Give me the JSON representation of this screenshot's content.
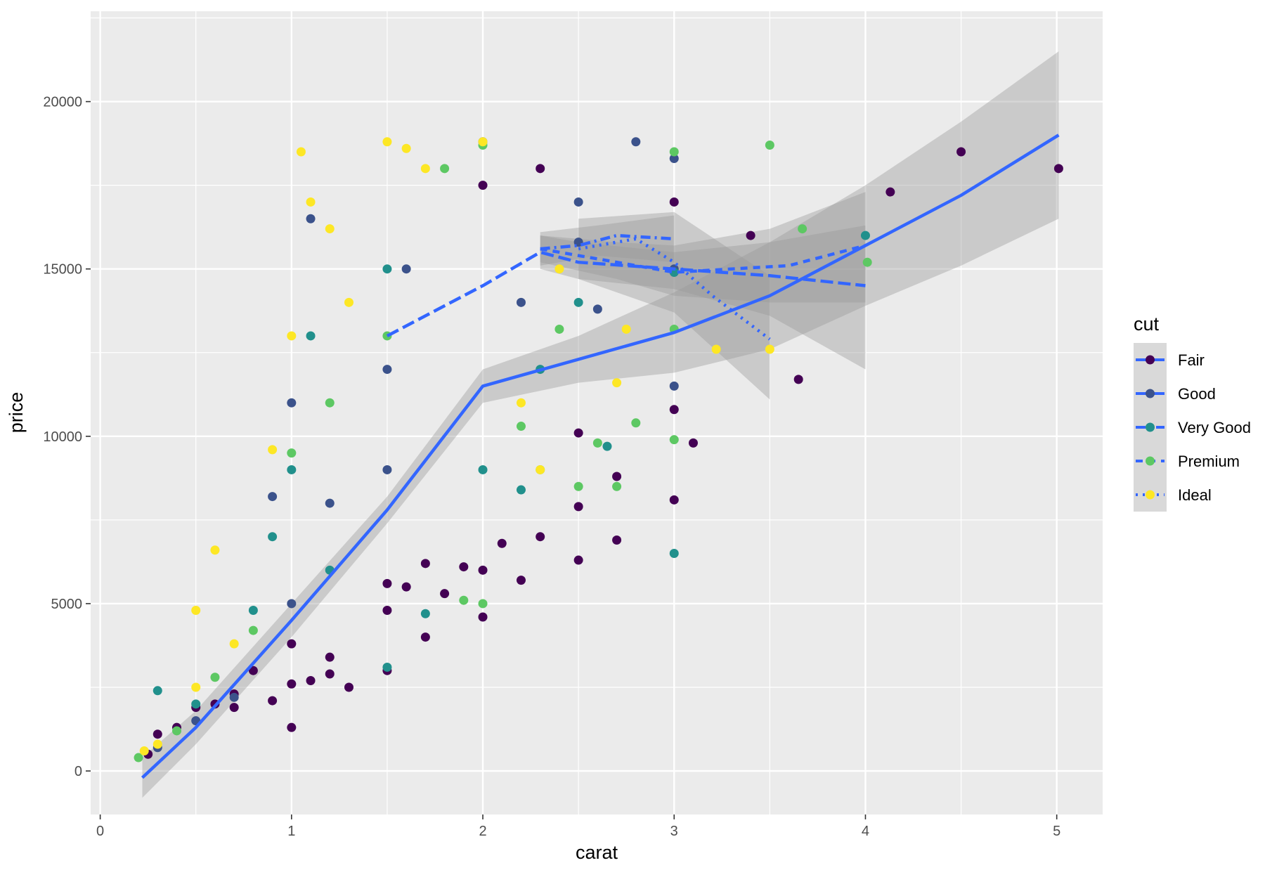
{
  "chart_data": {
    "type": "scatter",
    "title": "",
    "xlabel": "carat",
    "ylabel": "price",
    "xlim": [
      -0.05,
      5.24
    ],
    "ylim": [
      -1300,
      22700
    ],
    "x_ticks": [
      0,
      1,
      2,
      3,
      4,
      5
    ],
    "y_ticks": [
      0,
      5000,
      10000,
      15000,
      20000
    ],
    "x_tick_labels": [
      "0",
      "1",
      "2",
      "3",
      "4",
      "5"
    ],
    "y_tick_labels": [
      "0",
      "5000",
      "10000",
      "15000",
      "20000"
    ],
    "grid": true,
    "legend": {
      "title": "cut",
      "position": "right",
      "entries": [
        {
          "label": "Fair",
          "point_color": "#440154",
          "line_type": "solid"
        },
        {
          "label": "Good",
          "point_color": "#3B528B",
          "line_type": "longdash"
        },
        {
          "label": "Very Good",
          "point_color": "#21908C",
          "line_type": "dashdot"
        },
        {
          "label": "Premium",
          "point_color": "#5DC863",
          "line_type": "dashed"
        },
        {
          "label": "Ideal",
          "point_color": "#FDE725",
          "line_type": "dotted"
        }
      ]
    },
    "smooth_color": "#3366FF",
    "series": [
      {
        "name": "Fair",
        "color": "#440154",
        "points": [
          [
            0.25,
            500
          ],
          [
            0.3,
            1100
          ],
          [
            0.4,
            1300
          ],
          [
            0.5,
            1900
          ],
          [
            0.6,
            2000
          ],
          [
            0.7,
            2300
          ],
          [
            0.8,
            3000
          ],
          [
            0.9,
            2100
          ],
          [
            1.0,
            3800
          ],
          [
            1.0,
            1300
          ],
          [
            1.1,
            2700
          ],
          [
            1.2,
            3400
          ],
          [
            1.3,
            2500
          ],
          [
            1.5,
            3000
          ],
          [
            1.5,
            4800
          ],
          [
            1.6,
            5500
          ],
          [
            1.7,
            6200
          ],
          [
            1.8,
            5300
          ],
          [
            1.9,
            6100
          ],
          [
            2.0,
            6000
          ],
          [
            2.1,
            6800
          ],
          [
            2.2,
            5700
          ],
          [
            2.3,
            7000
          ],
          [
            2.5,
            6300
          ],
          [
            2.5,
            7900
          ],
          [
            2.7,
            6900
          ],
          [
            2.7,
            8800
          ],
          [
            3.0,
            8100
          ],
          [
            3.0,
            10800
          ],
          [
            3.0,
            17000
          ],
          [
            3.1,
            9800
          ],
          [
            3.4,
            16000
          ],
          [
            3.65,
            11700
          ],
          [
            4.13,
            17300
          ],
          [
            4.5,
            18500
          ],
          [
            5.01,
            18000
          ],
          [
            2.5,
            10100
          ],
          [
            2.0,
            4600
          ],
          [
            1.2,
            2900
          ],
          [
            1.5,
            5600
          ],
          [
            2.0,
            17500
          ],
          [
            2.3,
            18000
          ],
          [
            0.7,
            1900
          ],
          [
            1.0,
            2600
          ],
          [
            1.7,
            4000
          ]
        ],
        "smooth": [
          [
            0.22,
            -200
          ],
          [
            0.5,
            1300
          ],
          [
            1.0,
            4500
          ],
          [
            1.5,
            7800
          ],
          [
            2.0,
            11500
          ],
          [
            2.5,
            12300
          ],
          [
            3.0,
            13100
          ],
          [
            3.5,
            14200
          ],
          [
            4.0,
            15700
          ],
          [
            4.5,
            17200
          ],
          [
            5.01,
            19000
          ]
        ],
        "band_upper": [
          [
            0.22,
            400
          ],
          [
            0.5,
            1800
          ],
          [
            1.0,
            5000
          ],
          [
            1.5,
            8200
          ],
          [
            2.0,
            12000
          ],
          [
            2.5,
            13000
          ],
          [
            3.0,
            14300
          ],
          [
            3.5,
            15800
          ],
          [
            4.0,
            17500
          ],
          [
            4.5,
            19400
          ],
          [
            5.01,
            21500
          ]
        ],
        "band_lower": [
          [
            0.22,
            -800
          ],
          [
            0.5,
            800
          ],
          [
            1.0,
            4000
          ],
          [
            1.5,
            7400
          ],
          [
            2.0,
            11000
          ],
          [
            2.5,
            11600
          ],
          [
            3.0,
            11900
          ],
          [
            3.5,
            12600
          ],
          [
            4.0,
            13900
          ],
          [
            4.5,
            15100
          ],
          [
            5.01,
            16500
          ]
        ]
      },
      {
        "name": "Good",
        "color": "#3B528B",
        "points": [
          [
            0.3,
            700
          ],
          [
            0.5,
            1500
          ],
          [
            0.7,
            2200
          ],
          [
            0.9,
            8200
          ],
          [
            1.0,
            5000
          ],
          [
            1.1,
            16500
          ],
          [
            1.2,
            8000
          ],
          [
            1.5,
            12000
          ],
          [
            1.6,
            15000
          ],
          [
            2.0,
            18800
          ],
          [
            2.2,
            14000
          ],
          [
            2.5,
            15800
          ],
          [
            2.6,
            13800
          ],
          [
            2.8,
            18800
          ],
          [
            3.0,
            15000
          ],
          [
            3.0,
            18300
          ],
          [
            3.0,
            11500
          ],
          [
            2.5,
            17000
          ],
          [
            1.5,
            9000
          ],
          [
            1.0,
            11000
          ]
        ],
        "smooth": [
          [
            1.5,
            13000
          ],
          [
            2.0,
            14500
          ],
          [
            2.3,
            15500
          ],
          [
            2.5,
            15200
          ],
          [
            3.0,
            15000
          ],
          [
            3.5,
            14800
          ],
          [
            4.0,
            14500
          ]
        ],
        "band_upper": [
          [
            2.3,
            16000
          ],
          [
            2.5,
            15800
          ],
          [
            3.0,
            15500
          ],
          [
            3.5,
            15800
          ],
          [
            4.0,
            16300
          ]
        ],
        "band_lower": [
          [
            2.3,
            15000
          ],
          [
            2.5,
            14700
          ],
          [
            3.0,
            14400
          ],
          [
            3.5,
            13600
          ],
          [
            4.0,
            12000
          ]
        ]
      },
      {
        "name": "Very Good",
        "color": "#21908C",
        "points": [
          [
            0.3,
            2400
          ],
          [
            0.5,
            2000
          ],
          [
            0.8,
            4800
          ],
          [
            0.9,
            7000
          ],
          [
            1.0,
            9000
          ],
          [
            1.1,
            13000
          ],
          [
            1.5,
            15000
          ],
          [
            1.5,
            3100
          ],
          [
            1.7,
            4700
          ],
          [
            2.0,
            9000
          ],
          [
            2.2,
            8400
          ],
          [
            2.5,
            14000
          ],
          [
            2.65,
            9700
          ],
          [
            3.0,
            6500
          ],
          [
            3.0,
            14900
          ],
          [
            4.0,
            16000
          ],
          [
            2.3,
            12000
          ],
          [
            1.2,
            6000
          ]
        ],
        "smooth": [
          [
            2.3,
            15600
          ],
          [
            2.5,
            15700
          ],
          [
            2.7,
            16000
          ],
          [
            3.0,
            15900
          ]
        ],
        "band_upper": [
          [
            2.3,
            16100
          ],
          [
            2.6,
            16300
          ],
          [
            3.0,
            16600
          ]
        ],
        "band_lower": [
          [
            2.3,
            15100
          ],
          [
            2.6,
            15400
          ],
          [
            3.0,
            15200
          ]
        ]
      },
      {
        "name": "Premium",
        "color": "#5DC863",
        "points": [
          [
            0.2,
            400
          ],
          [
            0.4,
            1200
          ],
          [
            0.6,
            2800
          ],
          [
            0.8,
            4200
          ],
          [
            1.0,
            9500
          ],
          [
            1.2,
            11000
          ],
          [
            1.5,
            13000
          ],
          [
            1.8,
            18000
          ],
          [
            2.0,
            18700
          ],
          [
            2.2,
            10300
          ],
          [
            2.4,
            13200
          ],
          [
            2.5,
            8500
          ],
          [
            2.6,
            9800
          ],
          [
            2.8,
            10400
          ],
          [
            3.0,
            18500
          ],
          [
            3.0,
            13200
          ],
          [
            3.0,
            9900
          ],
          [
            3.5,
            18700
          ],
          [
            3.67,
            16200
          ],
          [
            4.01,
            15200
          ],
          [
            2.0,
            5000
          ],
          [
            1.9,
            5100
          ],
          [
            2.3,
            9000
          ],
          [
            2.7,
            8500
          ]
        ],
        "smooth": [
          [
            2.3,
            15600
          ],
          [
            2.5,
            15400
          ],
          [
            3.0,
            14900
          ],
          [
            3.3,
            15000
          ],
          [
            3.6,
            15100
          ],
          [
            4.0,
            15700
          ]
        ],
        "band_upper": [
          [
            2.3,
            16000
          ],
          [
            2.7,
            15800
          ],
          [
            3.0,
            15700
          ],
          [
            3.5,
            16200
          ],
          [
            4.0,
            17300
          ]
        ],
        "band_lower": [
          [
            2.3,
            15200
          ],
          [
            2.7,
            14700
          ],
          [
            3.0,
            14200
          ],
          [
            3.5,
            14000
          ],
          [
            4.0,
            14000
          ]
        ]
      },
      {
        "name": "Ideal",
        "color": "#FDE725",
        "points": [
          [
            0.23,
            600
          ],
          [
            0.3,
            800
          ],
          [
            0.5,
            2500
          ],
          [
            0.6,
            6600
          ],
          [
            0.7,
            3800
          ],
          [
            0.9,
            9600
          ],
          [
            1.0,
            13000
          ],
          [
            1.1,
            17000
          ],
          [
            1.2,
            16200
          ],
          [
            1.3,
            14000
          ],
          [
            1.5,
            18800
          ],
          [
            1.6,
            18600
          ],
          [
            1.7,
            18000
          ],
          [
            2.0,
            18800
          ],
          [
            2.2,
            11000
          ],
          [
            2.4,
            15000
          ],
          [
            2.7,
            11600
          ],
          [
            2.75,
            13200
          ],
          [
            3.22,
            12600
          ],
          [
            3.5,
            12600
          ],
          [
            2.3,
            9000
          ],
          [
            0.5,
            4800
          ],
          [
            1.05,
            18500
          ]
        ],
        "smooth": [
          [
            2.5,
            15600
          ],
          [
            2.8,
            15900
          ],
          [
            3.0,
            15200
          ],
          [
            3.2,
            14200
          ],
          [
            3.5,
            12900
          ]
        ],
        "band_upper": [
          [
            2.5,
            16500
          ],
          [
            3.0,
            16700
          ],
          [
            3.5,
            14800
          ]
        ],
        "band_lower": [
          [
            2.5,
            14700
          ],
          [
            3.0,
            13700
          ],
          [
            3.5,
            11100
          ]
        ]
      }
    ]
  }
}
